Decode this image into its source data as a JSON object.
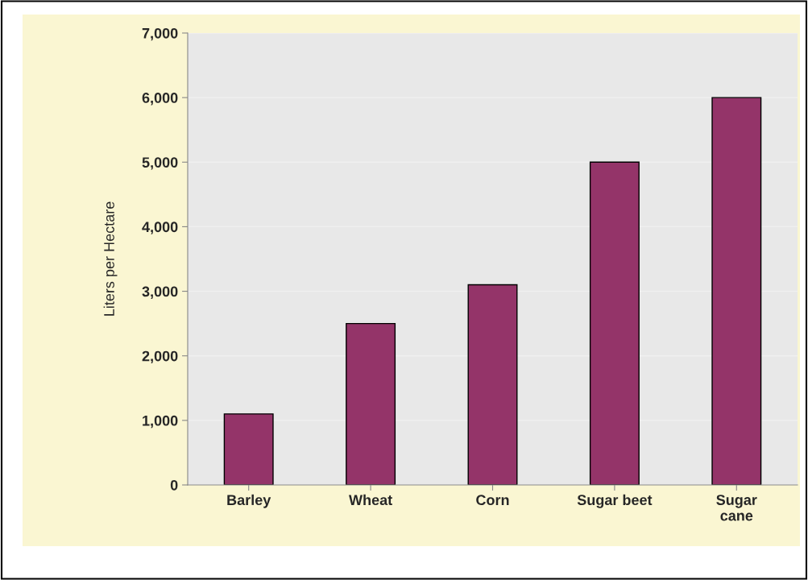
{
  "chart_data": {
    "type": "bar",
    "ylabel": "Liters per Hectare",
    "categories": [
      "Barley",
      "Wheat",
      "Corn",
      "Sugar beet",
      "Sugar\ncane"
    ],
    "values": [
      1100,
      2500,
      3100,
      5000,
      6000
    ],
    "color": "#943469",
    "ylim": [
      0,
      7000
    ],
    "yticks": [
      {
        "value": 0,
        "label": "0"
      },
      {
        "value": 1000,
        "label": "1,000"
      },
      {
        "value": 2000,
        "label": "2,000"
      },
      {
        "value": 3000,
        "label": "3,000"
      },
      {
        "value": 4000,
        "label": "4,000"
      },
      {
        "value": 5000,
        "label": "5,000"
      },
      {
        "value": 6000,
        "label": "6,000"
      },
      {
        "value": 7000,
        "label": "7,000"
      }
    ],
    "grid": "y"
  }
}
